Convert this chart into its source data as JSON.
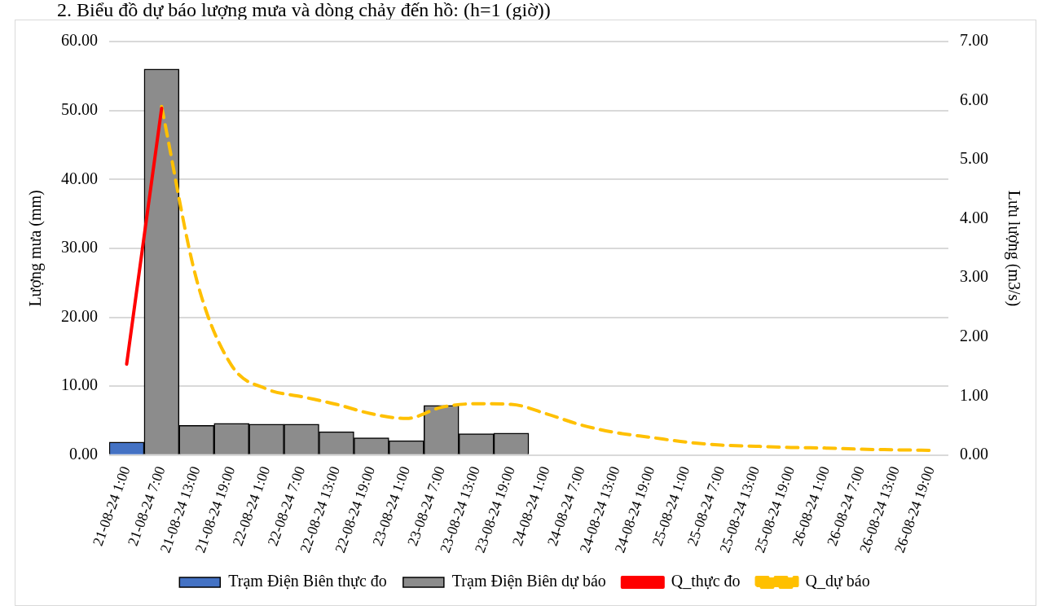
{
  "chart_data": {
    "type": "bar",
    "title": "2. Biểu đồ dự báo lượng mưa và dòng chảy đến hồ: (h=1 (giờ))",
    "categories": [
      "21-08-24 1:00",
      "21-08-24 7:00",
      "21-08-24 13:00",
      "21-08-24 19:00",
      "22-08-24 1:00",
      "22-08-24 7:00",
      "22-08-24 13:00",
      "22-08-24 19:00",
      "23-08-24 1:00",
      "23-08-24 7:00",
      "23-08-24 13:00",
      "23-08-24 19:00",
      "24-08-24 1:00",
      "24-08-24 7:00",
      "24-08-24 13:00",
      "24-08-24 19:00",
      "25-08-24 1:00",
      "25-08-24 7:00",
      "25-08-24 13:00",
      "25-08-24 19:00",
      "26-08-24 1:00",
      "26-08-24 7:00",
      "26-08-24 13:00",
      "26-08-24 19:00"
    ],
    "series": [
      {
        "name": "Trạm Điện Biên thực đo",
        "color": "#4472c4",
        "values": [
          1.9,
          null,
          null,
          null,
          null,
          null,
          null,
          null,
          null,
          null,
          null,
          null,
          null,
          null,
          null,
          null,
          null,
          null,
          null,
          null,
          null,
          null,
          null,
          null
        ]
      },
      {
        "name": "Trạm Điện Biên dự báo",
        "color": "#8c8c8c",
        "values": [
          null,
          56.0,
          4.3,
          4.6,
          4.5,
          4.5,
          3.4,
          2.5,
          2.1,
          7.2,
          3.1,
          3.2,
          null,
          null,
          null,
          null,
          null,
          null,
          null,
          null,
          null,
          null,
          null,
          null
        ]
      },
      {
        "name": "Q_thực đo",
        "type": "line",
        "axis": "y2",
        "color": "#ff0000",
        "line_style": "solid",
        "values": [
          1.54,
          5.87,
          null,
          null,
          null,
          null,
          null,
          null,
          null,
          null,
          null,
          null,
          null,
          null,
          null,
          null,
          null,
          null,
          null,
          null,
          null,
          null,
          null,
          null
        ]
      },
      {
        "name": "Q_dự báo",
        "type": "line",
        "axis": "y2",
        "color": "#ffc000",
        "line_style": "dashed",
        "values": [
          null,
          5.9,
          2.97,
          1.52,
          1.12,
          0.99,
          0.86,
          0.7,
          0.62,
          0.81,
          0.87,
          0.86,
          0.7,
          0.51,
          0.38,
          0.3,
          0.22,
          0.17,
          0.15,
          0.13,
          0.12,
          0.1,
          0.09,
          0.08
        ]
      }
    ],
    "ylabel": "Lượng mưa (mm)",
    "y2label": "Lưu lượng (m3/s)",
    "ylim": [
      0,
      60
    ],
    "yticks": [
      {
        "value": 0,
        "label": "0.00"
      },
      {
        "value": 10,
        "label": "10.00"
      },
      {
        "value": 20,
        "label": "20.00"
      },
      {
        "value": 30,
        "label": "30.00"
      },
      {
        "value": 40,
        "label": "40.00"
      },
      {
        "value": 50,
        "label": "50.00"
      },
      {
        "value": 60,
        "label": "60.00"
      }
    ],
    "y2lim": [
      0,
      7
    ],
    "y2ticks": [
      {
        "value": 0,
        "label": "0.00"
      },
      {
        "value": 1,
        "label": "1.00"
      },
      {
        "value": 2,
        "label": "2.00"
      },
      {
        "value": 3,
        "label": "3.00"
      },
      {
        "value": 4,
        "label": "4.00"
      },
      {
        "value": 5,
        "label": "5.00"
      },
      {
        "value": 6,
        "label": "6.00"
      },
      {
        "value": 7,
        "label": "7.00"
      }
    ],
    "grid": "y",
    "legend": "bottom"
  }
}
